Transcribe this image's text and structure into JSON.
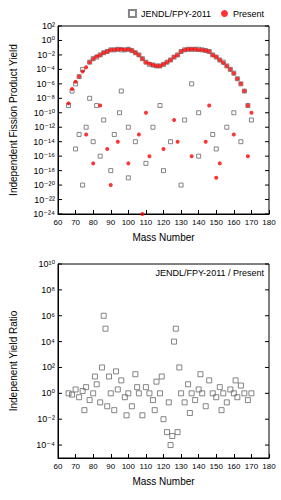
{
  "chart_data": [
    {
      "type": "scatter",
      "x_label": "Mass Number",
      "y_label": "Independent Fission Product Yield",
      "log": "y",
      "grid": false,
      "legend": "top right",
      "xlim": [
        60,
        180
      ],
      "xticks": [
        60,
        70,
        80,
        90,
        100,
        110,
        120,
        130,
        140,
        150,
        160,
        170,
        180
      ],
      "ylim": [
        1e-24,
        100
      ],
      "yticks": [
        {
          "value": 1e-24,
          "label": "10⁻²⁴"
        },
        {
          "value": 1e-22,
          "label": "10⁻²²"
        },
        {
          "value": 1e-20,
          "label": "10⁻²⁰"
        },
        {
          "value": 1e-18,
          "label": "10⁻¹⁸"
        },
        {
          "value": 1e-16,
          "label": "10⁻¹⁶"
        },
        {
          "value": 1e-14,
          "label": "10⁻¹⁴"
        },
        {
          "value": 1e-12,
          "label": "10⁻¹²"
        },
        {
          "value": 1e-10,
          "label": "10⁻¹⁰"
        },
        {
          "value": 1e-08,
          "label": "10⁻⁸"
        },
        {
          "value": 1e-06,
          "label": "10⁻⁶"
        },
        {
          "value": 0.0001,
          "label": "10⁻⁴"
        },
        {
          "value": 0.01,
          "label": "10⁻²"
        },
        {
          "value": 1,
          "label": "10⁰"
        },
        {
          "value": 100,
          "label": "10²"
        }
      ],
      "series": [
        {
          "name": "JENDL/FPY-2011",
          "color": "#666666",
          "marker": "open_square",
          "x": [
            66,
            68,
            70,
            72,
            74,
            74,
            76,
            78,
            80,
            80,
            82,
            84,
            84,
            86,
            88,
            90,
            90,
            92,
            94,
            95,
            96,
            98,
            100,
            100,
            102,
            104,
            106,
            108,
            110,
            110,
            112,
            114,
            116,
            118,
            120,
            120,
            122,
            124,
            126,
            128,
            130,
            130,
            132,
            134,
            136,
            138,
            140,
            140,
            142,
            144,
            146,
            148,
            150,
            150,
            152,
            154,
            156,
            158,
            160,
            162,
            164,
            166,
            168,
            170,
            72,
            78,
            86,
            92,
            100,
            104,
            114,
            124,
            132,
            140,
            148,
            156,
            164,
            70,
            82,
            96,
            118,
            136,
            160
          ],
          "values": [
            1e-09,
            1e-07,
            1e-06,
            1e-05,
            1e-20,
            0.0001,
            1e-12,
            0.001,
            0.003,
            1e-14,
            0.005,
            0.01,
            1e-16,
            0.02,
            0.03,
            0.05,
            1e-18,
            0.05,
            0.06,
            1e-10,
            0.05,
            0.05,
            0.06,
            1e-19,
            0.04,
            0.02,
            0.01,
            0.003,
            0.001,
            1e-17,
            0.0005,
            0.0004,
            0.0003,
            0.0003,
            0.0005,
            1e-18,
            0.001,
            0.002,
            0.005,
            0.01,
            0.03,
            1e-20,
            0.05,
            0.06,
            0.06,
            0.06,
            0.06,
            1e-16,
            0.05,
            0.04,
            0.03,
            0.01,
            0.005,
            1e-15,
            0.002,
            0.001,
            0.0003,
            0.0001,
            3e-05,
            5e-06,
            1e-06,
            1e-07,
            1e-09,
            1e-11,
            1e-13,
            1e-08,
            1e-11,
            1e-13,
            1e-12,
            1e-14,
            1e-12,
            1e-14,
            1e-11,
            1e-10,
            1e-13,
            1e-12,
            1e-14,
            1e-15,
            1e-09,
            1e-07,
            1e-09,
            1e-06,
            1e-10
          ]
        },
        {
          "name": "Present",
          "color": "#ff0000",
          "marker": "circle",
          "x": [
            66,
            68,
            70,
            72,
            74,
            76,
            78,
            80,
            82,
            84,
            86,
            88,
            90,
            92,
            94,
            96,
            98,
            100,
            102,
            104,
            106,
            108,
            108,
            110,
            112,
            114,
            116,
            118,
            120,
            122,
            124,
            126,
            128,
            130,
            132,
            134,
            136,
            138,
            140,
            142,
            144,
            146,
            148,
            150,
            152,
            154,
            156,
            158,
            160,
            162,
            164,
            166,
            168,
            170,
            76,
            80,
            88,
            94,
            100,
            106,
            112,
            120,
            128,
            136,
            144,
            152,
            160,
            168,
            84,
            110,
            126,
            146,
            90,
            150
          ],
          "values": [
            2e-09,
            2e-07,
            2e-06,
            1e-05,
            5e-05,
            0.0002,
            0.001,
            0.003,
            0.006,
            0.01,
            0.02,
            0.03,
            0.05,
            0.05,
            0.06,
            0.06,
            0.05,
            0.06,
            0.04,
            0.02,
            0.01,
            0.003,
            1e-24,
            0.001,
            0.0006,
            0.0004,
            0.0003,
            0.0003,
            0.0005,
            0.001,
            0.002,
            0.005,
            0.01,
            0.03,
            0.05,
            0.06,
            0.06,
            0.06,
            0.05,
            0.05,
            0.04,
            0.03,
            0.01,
            0.005,
            0.002,
            0.0008,
            0.0003,
            0.0001,
            3e-05,
            5e-06,
            1e-06,
            1e-07,
            1e-09,
            1e-10,
            1e-13,
            1e-17,
            1e-15,
            1e-14,
            1e-17,
            1e-13,
            1e-16,
            1e-15,
            1e-14,
            1e-16,
            1e-14,
            1e-17,
            1e-13,
            1e-16,
            1e-09,
            1e-10,
            1e-11,
            1e-09,
            1e-20,
            1e-19
          ]
        }
      ]
    },
    {
      "type": "scatter",
      "x_label": "Mass Number",
      "y_label": "Indepenent Yield Ratio",
      "annotation": "JENDL/FPY-2011 / Present",
      "log": "y",
      "grid": false,
      "xlim": [
        60,
        180
      ],
      "xticks": [
        60,
        70,
        80,
        90,
        100,
        110,
        120,
        130,
        140,
        150,
        160,
        170,
        180
      ],
      "ylim": [
        1e-05,
        10000000000.0
      ],
      "yticks": [
        {
          "value": 0.0001,
          "label": "10⁻⁴"
        },
        {
          "value": 0.01,
          "label": "10⁻²"
        },
        {
          "value": 1,
          "label": "10⁰"
        },
        {
          "value": 100,
          "label": "10²"
        },
        {
          "value": 10000.0,
          "label": "10⁴"
        },
        {
          "value": 1000000.0,
          "label": "10⁶"
        },
        {
          "value": 100000000.0,
          "label": "10⁸"
        },
        {
          "value": 10000000000.0,
          "label": "10¹⁰"
        }
      ],
      "color": "#666666",
      "marker": "open_square",
      "x": [
        66,
        68,
        70,
        72,
        74,
        76,
        78,
        80,
        82,
        84,
        85,
        86,
        87,
        88,
        89,
        90,
        92,
        94,
        96,
        98,
        100,
        102,
        104,
        106,
        108,
        110,
        112,
        114,
        116,
        118,
        120,
        122,
        123,
        124,
        125,
        126,
        127,
        128,
        129,
        130,
        132,
        134,
        136,
        138,
        140,
        142,
        144,
        146,
        148,
        150,
        152,
        154,
        156,
        158,
        160,
        162,
        164,
        166,
        168,
        170,
        75,
        81,
        93,
        99,
        105,
        115,
        119,
        135,
        141,
        153,
        161
      ],
      "values": [
        1,
        0.8,
        2,
        0.5,
        1.5,
        3,
        0.3,
        1,
        5,
        0.2,
        100,
        1000000.0,
        100000.0,
        0.1,
        20,
        1,
        0.05,
        2,
        10,
        0.5,
        1,
        0.1,
        30,
        1,
        0.02,
        3,
        1,
        0.3,
        8,
        1,
        0.01,
        0.001,
        0.2,
        0.0001,
        0.0005,
        10000.0,
        100000.0,
        0.001,
        100,
        1,
        0.2,
        5,
        1,
        0.3,
        2,
        1,
        0.1,
        10,
        1,
        0.5,
        3,
        1,
        0.2,
        2,
        1,
        0.5,
        4,
        1,
        0.3,
        1,
        0.05,
        20,
        50,
        0.02,
        3,
        0.05,
        20,
        0.03,
        30,
        0.05,
        10
      ]
    }
  ]
}
